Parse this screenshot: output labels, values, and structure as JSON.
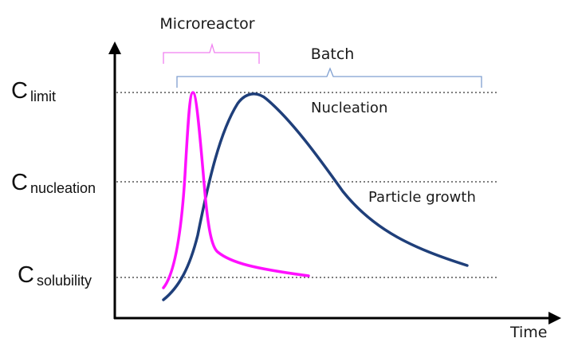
{
  "labels": {
    "y_levels": [
      {
        "letter": "C",
        "sub": "limit"
      },
      {
        "letter": "C",
        "sub": "nucleation"
      },
      {
        "letter": "C",
        "sub": "solubility"
      }
    ],
    "x_axis": "Time",
    "microreactor": "Microreactor",
    "batch": "Batch",
    "nucleation": "Nucleation",
    "particle_growth": "Particle growth"
  },
  "colors": {
    "microreactor": "#ff10ff",
    "microreactor_bracket": "#f07ff0",
    "batch": "#1f3f7a",
    "batch_bracket": "#7f9fd0",
    "axis": "#000000",
    "guide": "#333333"
  }
}
